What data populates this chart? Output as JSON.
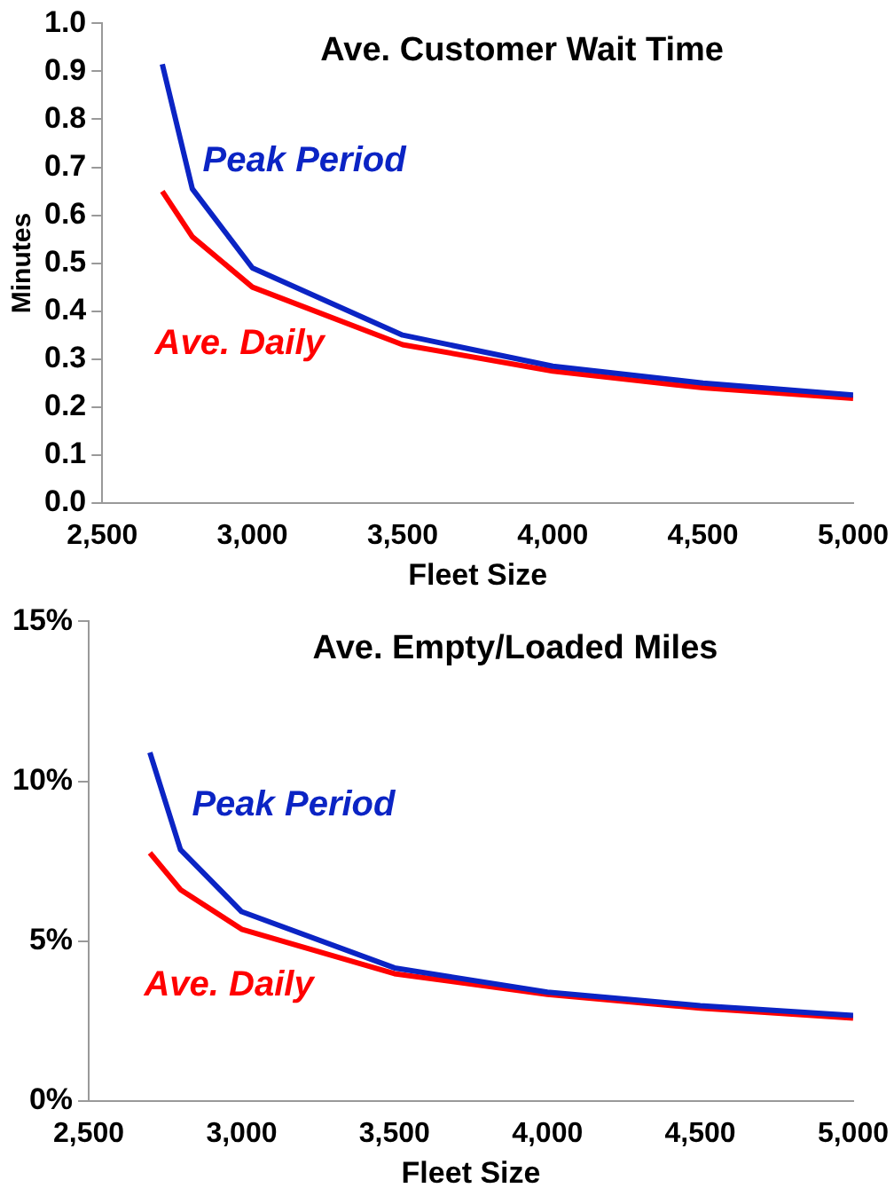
{
  "chart_data": [
    {
      "type": "line",
      "title": "Ave. Customer Wait Time",
      "xlabel": "Fleet Size",
      "ylabel": "Minutes",
      "x": [
        2700,
        2800,
        3000,
        3500,
        4000,
        4500,
        5000
      ],
      "series": [
        {
          "name": "Peak Period",
          "color": "#0b24c4",
          "values": [
            0.915,
            0.655,
            0.49,
            0.35,
            0.285,
            0.25,
            0.225
          ]
        },
        {
          "name": "Ave. Daily",
          "color": "#ff0000",
          "values": [
            0.65,
            0.555,
            0.45,
            0.33,
            0.275,
            0.24,
            0.218
          ]
        }
      ],
      "xlim": [
        2500,
        5000
      ],
      "xticks": [
        {
          "value": 2500,
          "label": "2,500"
        },
        {
          "value": 3000,
          "label": "3,000"
        },
        {
          "value": 3500,
          "label": "3,500"
        },
        {
          "value": 4000,
          "label": "4,000"
        },
        {
          "value": 4500,
          "label": "4,500"
        },
        {
          "value": 5000,
          "label": "5,000"
        }
      ],
      "ylim": [
        0,
        1
      ],
      "yticks": [
        {
          "value": 0,
          "label": "0.0"
        },
        {
          "value": 0.1,
          "label": "0.1"
        },
        {
          "value": 0.2,
          "label": "0.2"
        },
        {
          "value": 0.3,
          "label": "0.3"
        },
        {
          "value": 0.4,
          "label": "0.4"
        },
        {
          "value": 0.5,
          "label": "0.5"
        },
        {
          "value": 0.6,
          "label": "0.6"
        },
        {
          "value": 0.7,
          "label": "0.7"
        },
        {
          "value": 0.8,
          "label": "0.8"
        },
        {
          "value": 0.9,
          "label": "0.9"
        },
        {
          "value": 1,
          "label": "1.0"
        }
      ],
      "grid": false,
      "legend": false,
      "marker": "none",
      "line_style": "solid"
    },
    {
      "type": "line",
      "title": "Ave. Empty/Loaded Miles",
      "xlabel": "Fleet Size",
      "x": [
        2700,
        2800,
        3000,
        3500,
        4000,
        4500,
        5000
      ],
      "series": [
        {
          "name": "Peak Period",
          "color": "#0b24c4",
          "values": [
            10.9,
            7.86,
            5.92,
            4.16,
            3.4,
            2.98,
            2.67
          ]
        },
        {
          "name": "Ave. Daily",
          "color": "#ff0000",
          "values": [
            7.76,
            6.61,
            5.37,
            3.98,
            3.33,
            2.9,
            2.59
          ]
        }
      ],
      "xlim": [
        2500,
        5000
      ],
      "xticks": [
        {
          "value": 2500,
          "label": "2,500"
        },
        {
          "value": 3000,
          "label": "3,000"
        },
        {
          "value": 3500,
          "label": "3,500"
        },
        {
          "value": 4000,
          "label": "4,000"
        },
        {
          "value": 4500,
          "label": "4,500"
        },
        {
          "value": 5000,
          "label": "5,000"
        }
      ],
      "ylim": [
        0,
        15
      ],
      "yticks": [
        {
          "value": 0,
          "label": "0%"
        },
        {
          "value": 5,
          "label": "5%"
        },
        {
          "value": 10,
          "label": "10%"
        },
        {
          "value": 15,
          "label": "15%"
        }
      ],
      "grid": false,
      "legend": false,
      "marker": "none",
      "line_style": "solid"
    }
  ]
}
